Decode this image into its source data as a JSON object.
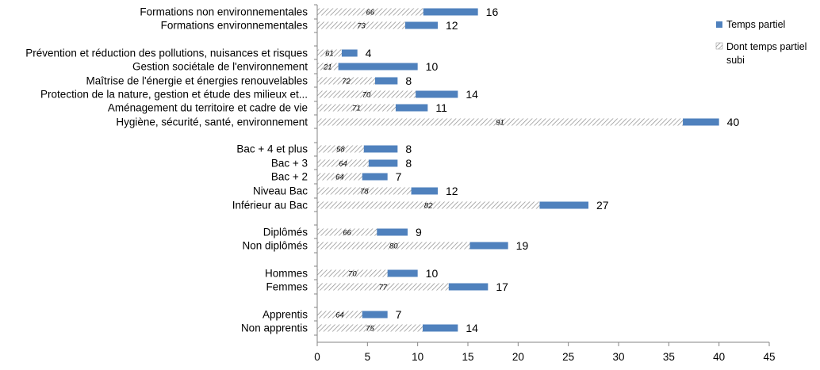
{
  "chart_data": {
    "type": "bar",
    "orientation": "horizontal",
    "series": [
      {
        "name": "Temps partiel",
        "color": "#4f81bd",
        "pattern": "solid"
      },
      {
        "name": "Dont temps partiel subi",
        "color": "#7f7f7f",
        "pattern": "hatched"
      }
    ],
    "xlim": [
      0,
      45
    ],
    "xticks": [
      "0",
      "5",
      "10",
      "15",
      "20",
      "25",
      "30",
      "35",
      "40",
      "45"
    ],
    "grid": false,
    "legend_position": "right",
    "rows": [
      {
        "label": "Formations non environnementales",
        "value": 16,
        "value_label": "16",
        "subi_pct": 66,
        "subi_label": "66"
      },
      {
        "label": "Formations environnementales",
        "value": 12,
        "value_label": "12",
        "subi_pct": 73,
        "subi_label": "73"
      },
      {
        "label": "Prévention et réduction des pollutions, nuisances et risques",
        "value": 4,
        "value_label": "4",
        "subi_pct": 61,
        "subi_label": "61"
      },
      {
        "label": "Gestion sociétale de l'environnement",
        "value": 10,
        "value_label": "10",
        "subi_pct": 21,
        "subi_label": "21"
      },
      {
        "label": "Maîtrise de l'énergie et énergies renouvelables",
        "value": 8,
        "value_label": "8",
        "subi_pct": 72,
        "subi_label": "72"
      },
      {
        "label": "Protection de la nature, gestion et étude des milieux et...",
        "value": 14,
        "value_label": "14",
        "subi_pct": 70,
        "subi_label": "70"
      },
      {
        "label": "Aménagement du territoire et cadre de vie",
        "value": 11,
        "value_label": "11",
        "subi_pct": 71,
        "subi_label": "71"
      },
      {
        "label": "Hygiène, sécurité, santé, environnement",
        "value": 40,
        "value_label": "40",
        "subi_pct": 91,
        "subi_label": "91"
      },
      {
        "label": "Bac + 4 et plus",
        "value": 8,
        "value_label": "8",
        "subi_pct": 58,
        "subi_label": "58"
      },
      {
        "label": "Bac + 3",
        "value": 8,
        "value_label": "8",
        "subi_pct": 64,
        "subi_label": "64"
      },
      {
        "label": "Bac + 2",
        "value": 7,
        "value_label": "7",
        "subi_pct": 64,
        "subi_label": "64"
      },
      {
        "label": "Niveau Bac",
        "value": 12,
        "value_label": "12",
        "subi_pct": 78,
        "subi_label": "78"
      },
      {
        "label": "Inférieur au Bac",
        "value": 27,
        "value_label": "27",
        "subi_pct": 82,
        "subi_label": "82"
      },
      {
        "label": "Diplômés",
        "value": 9,
        "value_label": "9",
        "subi_pct": 66,
        "subi_label": "66"
      },
      {
        "label": "Non diplômés",
        "value": 19,
        "value_label": "19",
        "subi_pct": 80,
        "subi_label": "80"
      },
      {
        "label": "Hommes",
        "value": 10,
        "value_label": "10",
        "subi_pct": 70,
        "subi_label": "70"
      },
      {
        "label": "Femmes",
        "value": 17,
        "value_label": "17",
        "subi_pct": 77,
        "subi_label": "77"
      },
      {
        "label": "Apprentis",
        "value": 7,
        "value_label": "7",
        "subi_pct": 64,
        "subi_label": "64"
      },
      {
        "label": "Non apprentis",
        "value": 14,
        "value_label": "14",
        "subi_pct": 75,
        "subi_label": "75"
      }
    ]
  }
}
